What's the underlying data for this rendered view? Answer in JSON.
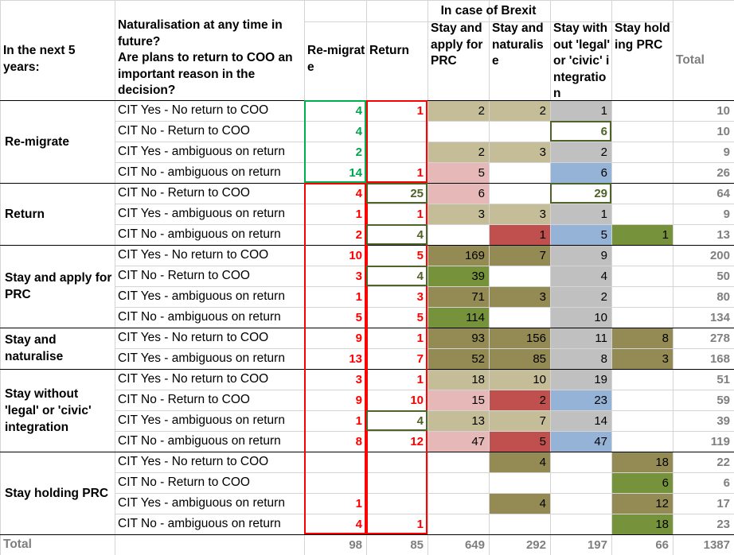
{
  "title": "In case of Brexit",
  "corner_header": "In the next 5 years:",
  "question_header": "Naturalisation at any time in future?\nAre plans to return to COO an important reason in the decision?",
  "columns": [
    "Re-migrate",
    "Return",
    "Stay and apply for PRC",
    "Stay and naturalise",
    "Stay without 'legal' or 'civic' integration",
    "Stay holding PRC",
    "Total"
  ],
  "groups": [
    {
      "label": "Re-migrate",
      "rows": [
        {
          "label": "CIT Yes - No return to COO",
          "values": [
            "4",
            "1",
            "2",
            "2",
            "1",
            "",
            "10"
          ]
        },
        {
          "label": "CIT No - Return to COO",
          "values": [
            "4",
            "",
            "",
            "",
            "6",
            "",
            "10"
          ]
        },
        {
          "label": "CIT Yes - ambiguous on return",
          "values": [
            "2",
            "",
            "2",
            "3",
            "2",
            "",
            "9"
          ]
        },
        {
          "label": "CIT No - ambiguous on return",
          "values": [
            "14",
            "1",
            "5",
            "",
            "6",
            "",
            "26"
          ]
        }
      ]
    },
    {
      "label": "Return",
      "rows": [
        {
          "label": "CIT No - Return to COO",
          "values": [
            "4",
            "25",
            "6",
            "",
            "29",
            "",
            "64"
          ]
        },
        {
          "label": "CIT Yes - ambiguous on return",
          "values": [
            "1",
            "1",
            "3",
            "3",
            "1",
            "",
            "9"
          ]
        },
        {
          "label": "CIT No - ambiguous on return",
          "values": [
            "2",
            "4",
            "",
            "1",
            "5",
            "1",
            "13"
          ]
        }
      ]
    },
    {
      "label": "Stay and apply for PRC",
      "rows": [
        {
          "label": "CIT Yes - No return to COO",
          "values": [
            "10",
            "5",
            "169",
            "7",
            "9",
            "",
            "200"
          ]
        },
        {
          "label": "CIT No - Return to COO",
          "values": [
            "3",
            "4",
            "39",
            "",
            "4",
            "",
            "50"
          ]
        },
        {
          "label": "CIT Yes - ambiguous on return",
          "values": [
            "1",
            "3",
            "71",
            "3",
            "2",
            "",
            "80"
          ]
        },
        {
          "label": "CIT No - ambiguous on return",
          "values": [
            "5",
            "5",
            "114",
            "",
            "10",
            "",
            "134"
          ]
        }
      ]
    },
    {
      "label": "Stay and naturalise",
      "rows": [
        {
          "label": "CIT Yes - No return to COO",
          "values": [
            "9",
            "1",
            "93",
            "156",
            "11",
            "8",
            "278"
          ]
        },
        {
          "label": "CIT Yes - ambiguous on return",
          "values": [
            "13",
            "7",
            "52",
            "85",
            "8",
            "3",
            "168"
          ]
        }
      ]
    },
    {
      "label": "Stay without 'legal' or 'civic' integration",
      "rows": [
        {
          "label": "CIT Yes - No return to COO",
          "values": [
            "3",
            "1",
            "18",
            "10",
            "19",
            "",
            "51"
          ]
        },
        {
          "label": "CIT No - Return to COO",
          "values": [
            "9",
            "10",
            "15",
            "2",
            "23",
            "",
            "59"
          ]
        },
        {
          "label": "CIT Yes - ambiguous on return",
          "values": [
            "1",
            "4",
            "13",
            "7",
            "14",
            "",
            "39"
          ]
        },
        {
          "label": "CIT No - ambiguous on return",
          "values": [
            "8",
            "12",
            "47",
            "5",
            "47",
            "",
            "119"
          ]
        }
      ]
    },
    {
      "label": "Stay holding PRC",
      "rows": [
        {
          "label": "CIT Yes - No return to COO",
          "values": [
            "",
            "",
            "",
            "4",
            "",
            "18",
            "22"
          ]
        },
        {
          "label": "CIT No - Return to COO",
          "values": [
            "",
            "",
            "",
            "",
            "",
            "6",
            "6"
          ]
        },
        {
          "label": "CIT Yes - ambiguous on return",
          "values": [
            "1",
            "",
            "",
            "4",
            "",
            "12",
            "17"
          ]
        },
        {
          "label": "CIT No - ambiguous on return",
          "values": [
            "4",
            "1",
            "",
            "",
            "",
            "18",
            "23"
          ]
        }
      ]
    }
  ],
  "total_row": {
    "label": "Total",
    "values": [
      "98",
      "85",
      "649",
      "292",
      "197",
      "66",
      "1387"
    ]
  },
  "cell_fills": [
    [
      "",
      "",
      "#c4bd97",
      "#c4bd97",
      "#c0c0c0",
      "",
      ""
    ],
    [
      "",
      "",
      "",
      "",
      "",
      "",
      ""
    ],
    [
      "",
      "",
      "#c4bd97",
      "#c4bd97",
      "#c0c0c0",
      "",
      ""
    ],
    [
      "",
      "",
      "#e6b9b8",
      "",
      "#95b3d7",
      "",
      ""
    ],
    [
      "",
      "",
      "#e6b9b8",
      "",
      "",
      "",
      ""
    ],
    [
      "",
      "",
      "#c4bd97",
      "#c4bd97",
      "#c0c0c0",
      "",
      ""
    ],
    [
      "",
      "",
      "",
      "#c0504d",
      "#95b3d7",
      "#76933c",
      ""
    ],
    [
      "",
      "",
      "#948a54",
      "#948a54",
      "#c0c0c0",
      "",
      ""
    ],
    [
      "",
      "",
      "#76933c",
      "",
      "#c0c0c0",
      "",
      ""
    ],
    [
      "",
      "",
      "#948a54",
      "#948a54",
      "#c0c0c0",
      "",
      ""
    ],
    [
      "",
      "",
      "#76933c",
      "",
      "#c0c0c0",
      "",
      ""
    ],
    [
      "",
      "",
      "#948a54",
      "#948a54",
      "#c0c0c0",
      "#948a54",
      ""
    ],
    [
      "",
      "",
      "#948a54",
      "#948a54",
      "#c0c0c0",
      "#948a54",
      ""
    ],
    [
      "",
      "",
      "#c4bd97",
      "#c4bd97",
      "#c0c0c0",
      "",
      ""
    ],
    [
      "",
      "",
      "#e6b9b8",
      "#c0504d",
      "#95b3d7",
      "",
      ""
    ],
    [
      "",
      "",
      "#c4bd97",
      "#c4bd97",
      "#c0c0c0",
      "",
      ""
    ],
    [
      "",
      "",
      "#e6b9b8",
      "#c0504d",
      "#95b3d7",
      "",
      ""
    ],
    [
      "",
      "",
      "",
      "#948a54",
      "",
      "#948a54",
      ""
    ],
    [
      "",
      "",
      "",
      "",
      "",
      "#76933c",
      ""
    ],
    [
      "",
      "",
      "",
      "#948a54",
      "",
      "#948a54",
      ""
    ],
    [
      "",
      "",
      "",
      "",
      "",
      "#76933c",
      ""
    ]
  ],
  "colors": {
    "remigrate_text": "#00a550",
    "return_text": "#ff0000",
    "highlight_text": "#4f6228",
    "remigrate_box": "#00b050",
    "return_box": "#ff0000",
    "highlight_box": "#4f6228",
    "total_text": "#7f7f7f"
  }
}
